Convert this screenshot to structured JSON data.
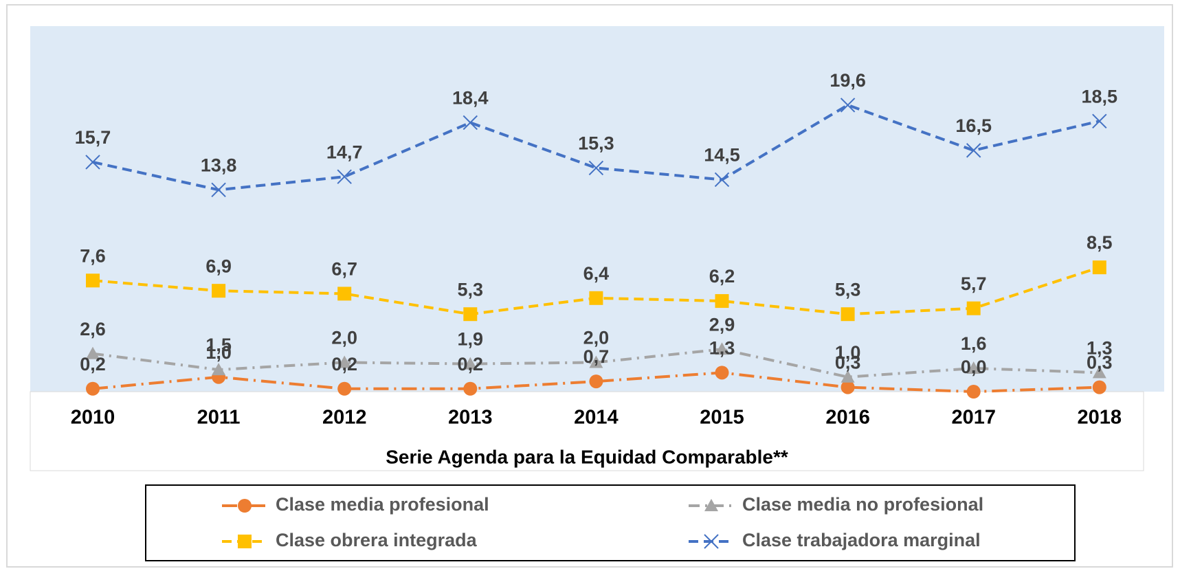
{
  "chart_data": {
    "type": "line",
    "x_label": "Serie Agenda para la Equidad Comparable**",
    "categories": [
      "2010",
      "2011",
      "2012",
      "2013",
      "2014",
      "2015",
      "2016",
      "2017",
      "2018"
    ],
    "ylim": [
      0,
      25
    ],
    "series": [
      {
        "name": "Clase media profesional",
        "color": "#ed7d31",
        "marker": "circle",
        "dash": "dashdot-long",
        "values": [
          0.2,
          1.0,
          0.2,
          0.2,
          0.7,
          1.3,
          0.3,
          0.0,
          0.3
        ],
        "value_labels": [
          "0,2",
          "1,0",
          "0,2",
          "0,2",
          "0,7",
          "1,3",
          "0,3",
          "0,0",
          "0,3"
        ]
      },
      {
        "name": "Clase media no profesional",
        "color": "#a5a5a5",
        "marker": "triangle",
        "dash": "dashdot",
        "values": [
          2.6,
          1.5,
          2.0,
          1.9,
          2.0,
          2.9,
          1.0,
          1.6,
          1.3
        ],
        "value_labels": [
          "2,6",
          "1,5",
          "2,0",
          "1,9",
          "2,0",
          "2,9",
          "1,0",
          "1,6",
          "1,3"
        ]
      },
      {
        "name": "Clase obrera integrada",
        "color": "#ffc000",
        "marker": "square",
        "dash": "dash",
        "values": [
          7.6,
          6.9,
          6.7,
          5.3,
          6.4,
          6.2,
          5.3,
          5.7,
          8.5
        ],
        "value_labels": [
          "7,6",
          "6,9",
          "6,7",
          "5,3",
          "6,4",
          "6,2",
          "5,3",
          "5,7",
          "8,5"
        ]
      },
      {
        "name": "Clase trabajadora marginal",
        "color": "#4472c4",
        "marker": "x",
        "dash": "dash",
        "values": [
          15.7,
          13.8,
          14.7,
          18.4,
          15.3,
          14.5,
          19.6,
          16.5,
          18.5
        ],
        "value_labels": [
          "15,7",
          "13,8",
          "14,7",
          "18,4",
          "15,3",
          "14,5",
          "19,6",
          "16,5",
          "18,5"
        ]
      }
    ]
  }
}
